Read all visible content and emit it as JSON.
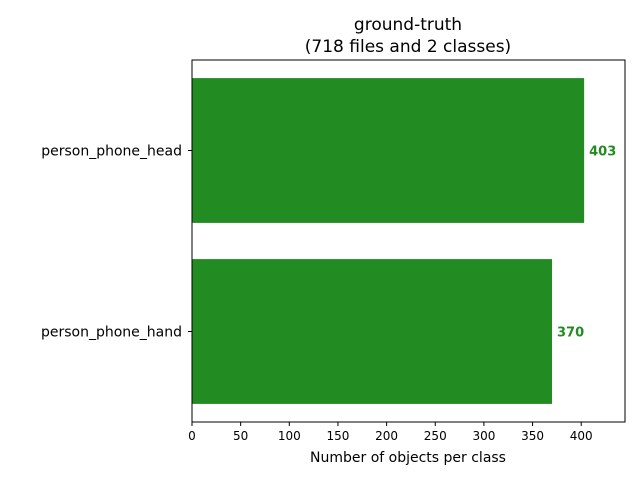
{
  "chart_data": {
    "type": "bar",
    "orientation": "horizontal",
    "title_line1": "ground-truth",
    "title_line2": "(718 files and 2 classes)",
    "categories": [
      "person_phone_head",
      "person_phone_hand"
    ],
    "values": [
      403,
      370
    ],
    "value_labels": [
      "403",
      "370"
    ],
    "xlabel": "Number of objects per class",
    "ylabel": "",
    "xlim": [
      0,
      445
    ],
    "xticks": [
      0,
      50,
      100,
      150,
      200,
      250,
      300,
      350,
      400
    ],
    "xtick_labels": [
      "0",
      "50",
      "100",
      "150",
      "200",
      "250",
      "300",
      "350",
      "400"
    ],
    "bar_color": "#228b22",
    "grid": false
  }
}
